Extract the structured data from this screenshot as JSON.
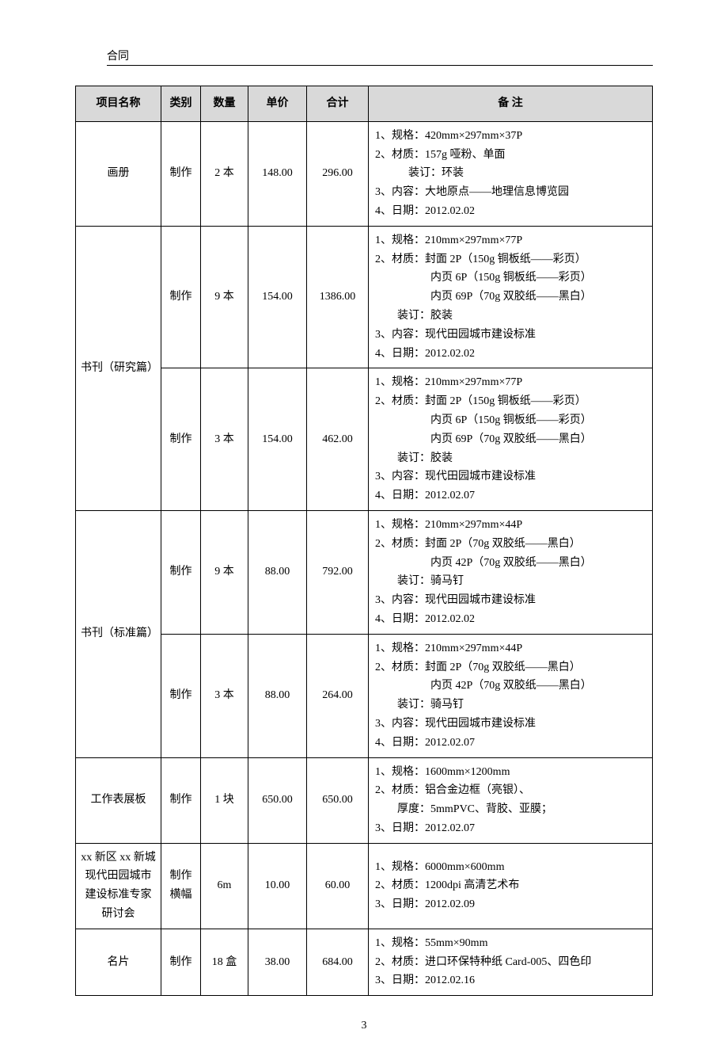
{
  "header": "合同",
  "page_number": "3",
  "columns": {
    "name": "项目名称",
    "type": "类别",
    "qty": "数量",
    "price": "单价",
    "total": "合计",
    "note": "备 注"
  },
  "rows": [
    {
      "name": "画册",
      "name_rowspan": 1,
      "type": "制作",
      "qty": "2 本",
      "price": "148.00",
      "total": "296.00",
      "note": "1、规格：420mm×297mm×37P\n2、材质：157g 哑粉、单面\n　　　装订：环装\n3、内容：大地原点——地理信息博览园\n4、日期：2012.02.02"
    },
    {
      "name": "书刊（研究篇）",
      "name_rowspan": 2,
      "type": "制作",
      "qty": "9 本",
      "price": "154.00",
      "total": "1386.00",
      "note": "1、规格：210mm×297mm×77P\n2、材质：封面 2P（150g 铜板纸——彩页）\n　　　　　内页 6P（150g 铜板纸——彩页）\n　　　　　内页 69P（70g 双胶纸——黑白）\n　　装订：胶装\n3、内容：现代田园城市建设标准\n4、日期：2012.02.02"
    },
    {
      "type": "制作",
      "qty": "3 本",
      "price": "154.00",
      "total": "462.00",
      "note": "1、规格：210mm×297mm×77P\n2、材质：封面 2P（150g 铜板纸——彩页）\n　　　　　内页 6P（150g 铜板纸——彩页）\n　　　　　内页 69P（70g 双胶纸——黑白）\n　　装订：胶装\n3、内容：现代田园城市建设标准\n4、日期：2012.02.07"
    },
    {
      "name": "书刊（标准篇）",
      "name_rowspan": 2,
      "type": "制作",
      "qty": "9 本",
      "price": "88.00",
      "total": "792.00",
      "note": "1、规格：210mm×297mm×44P\n2、材质：封面 2P（70g 双胶纸——黑白）\n　　　　　内页 42P（70g 双胶纸——黑白）\n　　装订：骑马钉\n3、内容：现代田园城市建设标准\n4、日期：2012.02.02"
    },
    {
      "type": "制作",
      "qty": "3 本",
      "price": "88.00",
      "total": "264.00",
      "note": "1、规格：210mm×297mm×44P\n2、材质：封面 2P（70g 双胶纸——黑白）\n　　　　　内页 42P（70g 双胶纸——黑白）\n　　装订：骑马钉\n3、内容：现代田园城市建设标准\n4、日期：2012.02.07"
    },
    {
      "name": "工作表展板",
      "name_rowspan": 1,
      "type": "制作",
      "qty": "1 块",
      "price": "650.00",
      "total": "650.00",
      "note": "1、规格：1600mm×1200mm\n2、材质：铝合金边框（亮银）、\n　　厚度：5mmPVC、背胶、亚膜；\n3、日期：2012.02.07"
    },
    {
      "name": "xx 新区 xx 新城现代田园城市建设标准专家研讨会",
      "name_rowspan": 1,
      "type": "制作横幅",
      "qty": "6m",
      "price": "10.00",
      "total": "60.00",
      "note": "1、规格：6000mm×600mm\n2、材质：1200dpi 高清艺术布\n3、日期：2012.02.09"
    },
    {
      "name": "名片",
      "name_rowspan": 1,
      "type": "制作",
      "qty": "18 盒",
      "price": "38.00",
      "total": "684.00",
      "note": "1、规格：55mm×90mm\n2、材质：进口环保特种纸 Card-005、四色印\n3、日期：2012.02.16"
    }
  ]
}
